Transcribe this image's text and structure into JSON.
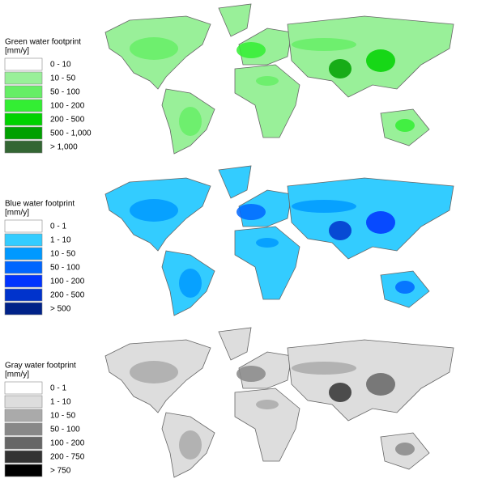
{
  "maps": [
    {
      "title": "Green water footprint",
      "unit": "[mm/y]",
      "legend": [
        {
          "label": "0 - 10",
          "color": "#ffffff"
        },
        {
          "label": "10 - 50",
          "color": "#99f099"
        },
        {
          "label": "50 - 100",
          "color": "#66ee66"
        },
        {
          "label": "100 - 200",
          "color": "#33ee33"
        },
        {
          "label": "200 - 500",
          "color": "#00d200"
        },
        {
          "label": "500 - 1,000",
          "color": "#00a000"
        },
        {
          "label": "> 1,000",
          "color": "#336633"
        }
      ]
    },
    {
      "title": "Blue water footprint",
      "unit": "[mm/y]",
      "legend": [
        {
          "label": "0 - 1",
          "color": "#ffffff"
        },
        {
          "label": "1 - 10",
          "color": "#33ccff"
        },
        {
          "label": "10 - 50",
          "color": "#0099ff"
        },
        {
          "label": "50 - 100",
          "color": "#0066ff"
        },
        {
          "label": "100 - 200",
          "color": "#0033ff"
        },
        {
          "label": "200 - 500",
          "color": "#0033cc"
        },
        {
          "label": "> 500",
          "color": "#002288"
        }
      ]
    },
    {
      "title": "Gray water footprint",
      "unit": "[mm/y]",
      "legend": [
        {
          "label": "0 - 1",
          "color": "#ffffff"
        },
        {
          "label": "1 - 10",
          "color": "#dddddd"
        },
        {
          "label": "10 - 50",
          "color": "#aaaaaa"
        },
        {
          "label": "50 - 100",
          "color": "#888888"
        },
        {
          "label": "100 - 200",
          "color": "#666666"
        },
        {
          "label": "200 - 750",
          "color": "#333333"
        },
        {
          "label": "> 750",
          "color": "#000000"
        }
      ]
    }
  ]
}
